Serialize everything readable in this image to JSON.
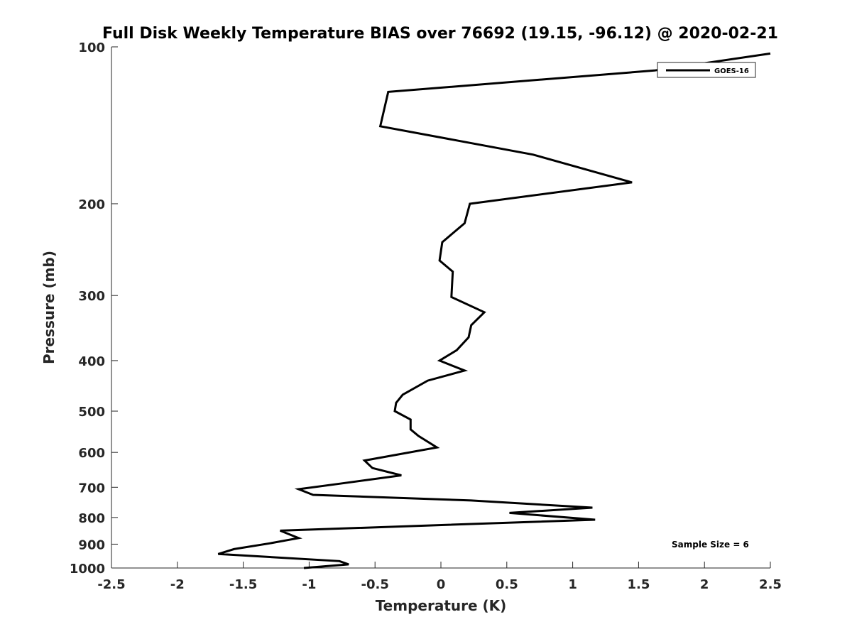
{
  "chart_data": {
    "type": "line",
    "title": "Full Disk Weekly Temperature BIAS over 76692 (19.15, -96.12) @ 2020-02-21",
    "xlabel": "Temperature (K)",
    "ylabel": "Pressure (mb)",
    "xlim": [
      -2.5,
      2.5
    ],
    "ylim": [
      100,
      1000
    ],
    "y_scale": "log",
    "y_reversed": true,
    "x_ticks": [
      "-2.5",
      "-2",
      "-1.5",
      "-1",
      "-0.5",
      "0",
      "0.5",
      "1",
      "1.5",
      "2",
      "2.5"
    ],
    "y_ticks": [
      "100",
      "200",
      "300",
      "400",
      "500",
      "600",
      "700",
      "800",
      "900",
      "1000"
    ],
    "grid": false,
    "legend_position": "top-right",
    "series": [
      {
        "name": "GOES-16",
        "color": "#000000",
        "points": [
          [
            2.5,
            103
          ],
          [
            1.62,
            111
          ],
          [
            -0.4,
            122
          ],
          [
            -0.46,
            142
          ],
          [
            0.7,
            161
          ],
          [
            1.45,
            182
          ],
          [
            0.22,
            200
          ],
          [
            0.18,
            218
          ],
          [
            0.01,
            237
          ],
          [
            -0.01,
            257
          ],
          [
            0.09,
            270
          ],
          [
            0.08,
            302
          ],
          [
            0.33,
            323
          ],
          [
            0.23,
            342
          ],
          [
            0.21,
            361
          ],
          [
            0.12,
            382
          ],
          [
            -0.01,
            400
          ],
          [
            0.18,
            418
          ],
          [
            -0.1,
            437
          ],
          [
            -0.29,
            465
          ],
          [
            -0.34,
            482
          ],
          [
            -0.35,
            500
          ],
          [
            -0.23,
            519
          ],
          [
            -0.23,
            542
          ],
          [
            -0.17,
            558
          ],
          [
            -0.03,
            587
          ],
          [
            -0.58,
            622
          ],
          [
            -0.52,
            643
          ],
          [
            -0.3,
            664
          ],
          [
            -0.77,
            689
          ],
          [
            -1.08,
            706
          ],
          [
            -0.97,
            724
          ],
          [
            0.23,
            742
          ],
          [
            1.15,
            766
          ],
          [
            0.52,
            784
          ],
          [
            1.17,
            808
          ],
          [
            -1.22,
            848
          ],
          [
            -1.08,
            876
          ],
          [
            -1.3,
            897
          ],
          [
            -1.57,
            920
          ],
          [
            -1.69,
            940
          ],
          [
            -0.77,
            970
          ],
          [
            -0.7,
            984
          ],
          [
            -1.04,
            1005
          ]
        ]
      }
    ],
    "annotations": [
      "Sample Size = 6"
    ]
  }
}
